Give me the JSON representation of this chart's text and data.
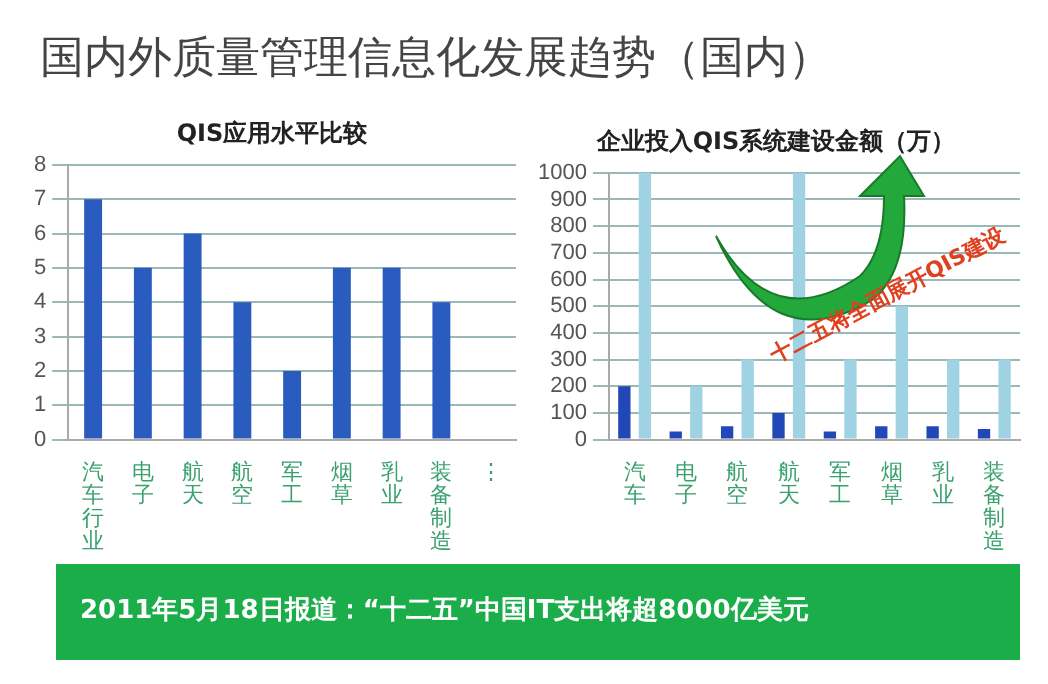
{
  "chart_data": [
    {
      "type": "other",
      "title": "国内外质量管理信息化发展趋势（国内）"
    },
    {
      "type": "bar",
      "title": "QIS应用水平比较",
      "categories": [
        "汽车行业",
        "电子",
        "航天",
        "航空",
        "军工",
        "烟草",
        "乳业",
        "装备制造",
        "⋮"
      ],
      "values": [
        7,
        5,
        6,
        4,
        2,
        5,
        5,
        4,
        null
      ],
      "color": "#2a5cc0",
      "ylim": [
        0,
        8
      ],
      "yticks": [
        0,
        1,
        2,
        3,
        4,
        5,
        6,
        7,
        8
      ],
      "grid": "y"
    },
    {
      "type": "bar",
      "title": "企业投入QIS系统建设金额（万）",
      "categories": [
        "汽车",
        "电子",
        "航空",
        "航天",
        "军工",
        "烟草",
        "乳业",
        "装备制造"
      ],
      "series": [
        {
          "color": "#2248b8",
          "values": [
            200,
            30,
            50,
            100,
            30,
            50,
            50,
            40
          ]
        },
        {
          "color": "#9fd3e3",
          "values": [
            1000,
            200,
            300,
            1000,
            300,
            500,
            300,
            300
          ]
        }
      ],
      "ylim": [
        0,
        1000
      ],
      "yticks": [
        0,
        100,
        200,
        300,
        400,
        500,
        600,
        700,
        800,
        900,
        1000
      ],
      "grid": "y",
      "annotations": [
        "十二五将全面展开QIS建设"
      ]
    },
    {
      "type": "other",
      "annotations": [
        "2011年5月18日报道：“十二五”中国IT支出将超8000亿美元"
      ]
    }
  ]
}
